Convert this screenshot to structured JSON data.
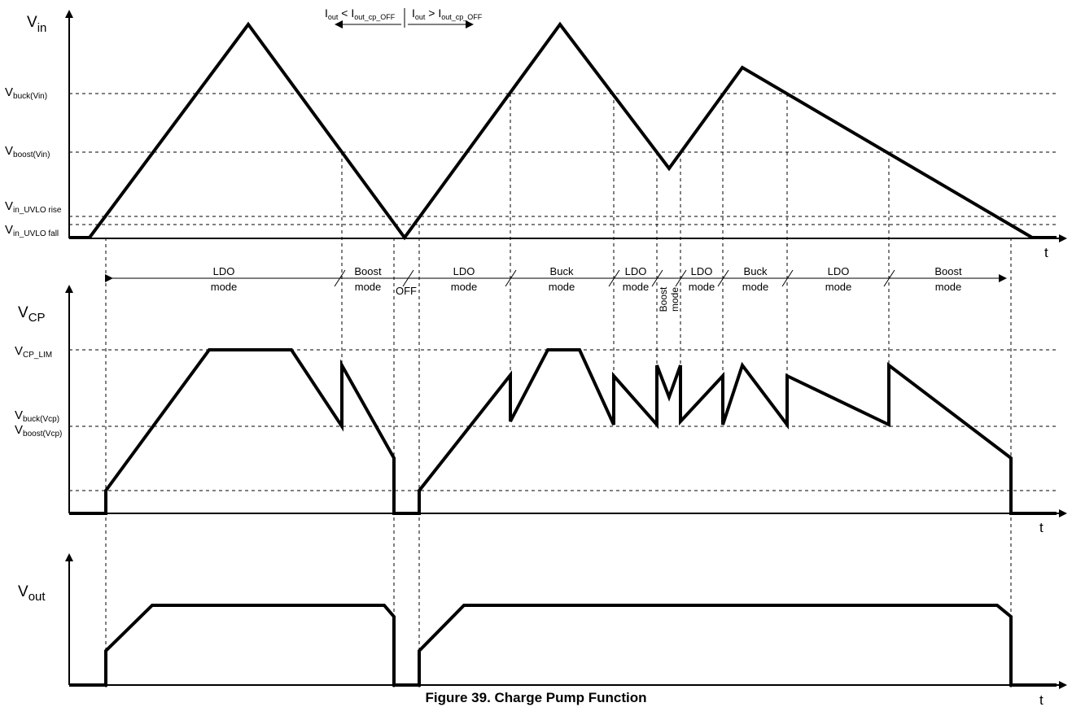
{
  "caption": "Figure 39. Charge Pump Function",
  "axes": {
    "vin": {
      "name": "V",
      "sub": "in",
      "t": "t"
    },
    "vcp": {
      "name": "V",
      "sub": "CP",
      "t": "t"
    },
    "vout": {
      "name": "V",
      "sub": "out",
      "t": "t"
    }
  },
  "levels": {
    "vbuck_vin": {
      "name": "V",
      "sub": "buck(Vin)"
    },
    "vboost_vin": {
      "name": "V",
      "sub": "boost(Vin)"
    },
    "uvlo_rise": {
      "name": "V",
      "sub": "in_UVLO rise"
    },
    "uvlo_fall": {
      "name": "V",
      "sub": "in_UVLO fall"
    },
    "vcp_lim": {
      "name": "V",
      "sub": "CP_LIM"
    },
    "vbuck_vcp": {
      "name": "V",
      "sub": "buck(Vcp)"
    },
    "vboost_vcp": {
      "name": "V",
      "sub": "boost(Vcp)"
    }
  },
  "current_labels": {
    "left": {
      "i1": "I",
      "s1": "out",
      "rel": " < ",
      "i2": "I",
      "s2": "out_cp_OFF"
    },
    "right": {
      "i1": "I",
      "s1": "out",
      "rel": " > ",
      "i2": "I",
      "s2": "out_cp_OFF"
    }
  },
  "modes": {
    "m1": {
      "l1": "LDO",
      "l2": "mode"
    },
    "m2": {
      "l1": "Boost",
      "l2": "mode"
    },
    "m3": {
      "l1": "OFF"
    },
    "m4": {
      "l1": "LDO",
      "l2": "mode"
    },
    "m5": {
      "l1": "Buck",
      "l2": "mode"
    },
    "m6": {
      "l1": "LDO",
      "l2": "mode"
    },
    "m7": {
      "l1": "Boost",
      "l2": "mode"
    },
    "m8": {
      "l1": "LDO",
      "l2": "mode"
    },
    "m9": {
      "l1": "Buck",
      "l2": "mode"
    },
    "m10": {
      "l1": "LDO",
      "l2": "mode"
    },
    "m11": {
      "l1": "Boost",
      "l2": "mode"
    }
  }
}
